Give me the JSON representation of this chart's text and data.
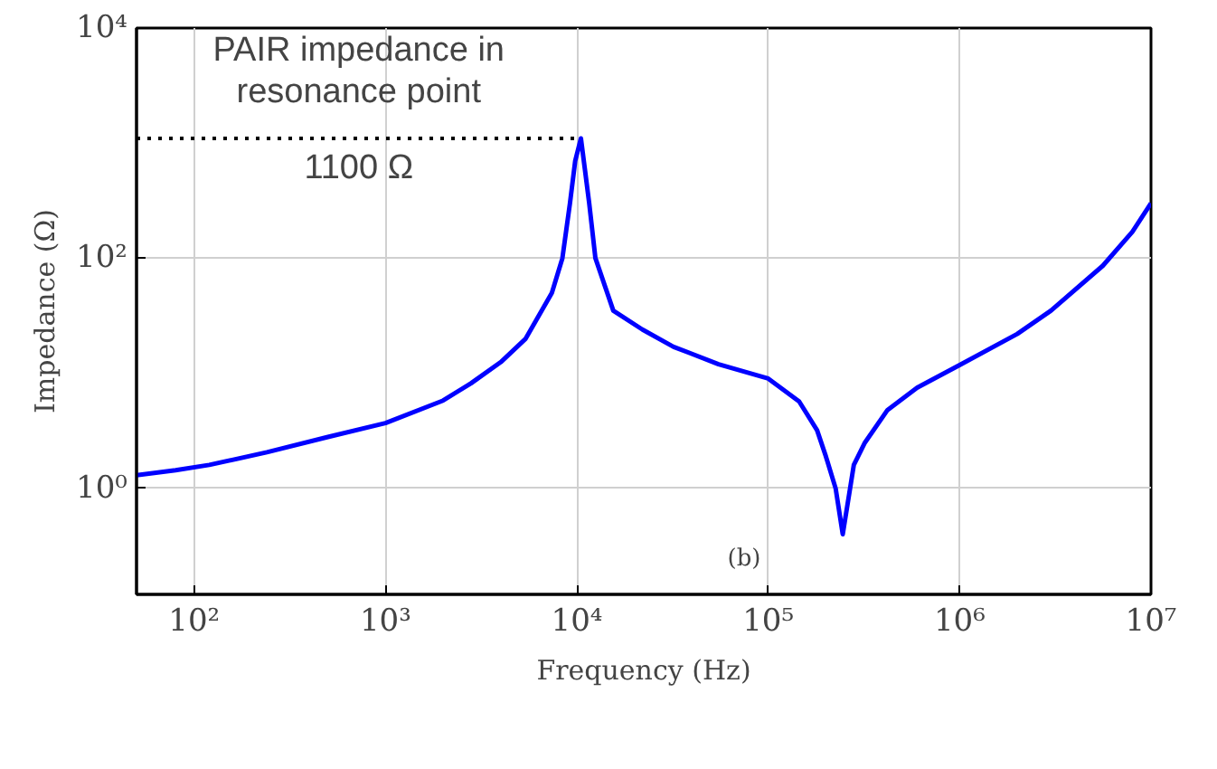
{
  "chart_data": {
    "type": "line",
    "xlabel": "Frequency (Hz)",
    "ylabel": "Impedance (Ω)",
    "log": "xy",
    "grid": true,
    "line_style": "solid",
    "xlim": [
      50,
      10000000
    ],
    "ylim": [
      0.12,
      10000
    ],
    "xticks": [
      {
        "value": 100,
        "label": "10²"
      },
      {
        "value": 1000,
        "label": "10³"
      },
      {
        "value": 10000,
        "label": "10⁴"
      },
      {
        "value": 100000,
        "label": "10⁵"
      },
      {
        "value": 1000000,
        "label": "10⁶"
      },
      {
        "value": 10000000,
        "label": "10⁷"
      }
    ],
    "yticks": [
      {
        "value": 1,
        "label": "10⁰"
      },
      {
        "value": 100,
        "label": "10²"
      },
      {
        "value": 10000,
        "label": "10⁴"
      }
    ],
    "x": [
      50,
      80,
      120,
      240,
      500,
      1000,
      2000,
      2800,
      4000,
      5400,
      7400,
      8400,
      9200,
      9800,
      10500,
      11000,
      11600,
      12500,
      15500,
      22000,
      32000,
      55000,
      100000,
      145000,
      180000,
      200000,
      225000,
      245000,
      265000,
      280000,
      320000,
      420000,
      600000,
      1000000,
      2000000,
      3000000,
      5600000,
      8000000,
      10000000
    ],
    "series": [
      {
        "color": "#0000ff",
        "values": [
          1.3,
          1.44,
          1.6,
          2.06,
          2.8,
          3.7,
          5.8,
          8.2,
          12.5,
          20,
          50,
          100,
          300,
          700,
          1100,
          600,
          300,
          100,
          35,
          24,
          17,
          12,
          9,
          5.7,
          3.2,
          1.9,
          1.0,
          0.4,
          0.9,
          1.6,
          2.5,
          4.8,
          7.5,
          11.8,
          22,
          35,
          86,
          170,
          300
        ]
      }
    ],
    "ref_lines": [
      {
        "axis": "y",
        "value": 1100,
        "label": "1100 Ω",
        "color": "#000000",
        "line_style": "dotted"
      }
    ],
    "annotations": [
      "PAIR impedance in resonance point",
      "(b)"
    ]
  }
}
